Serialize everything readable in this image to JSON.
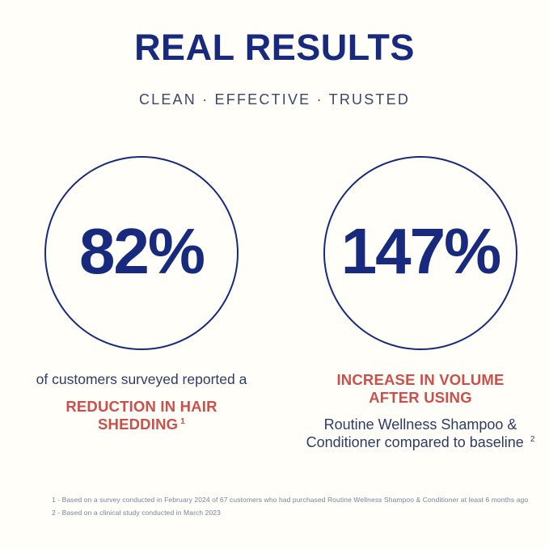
{
  "header": {
    "title": "REAL RESULTS",
    "subtitle": "CLEAN · EFFECTIVE · TRUSTED"
  },
  "stats": [
    {
      "id": "hair-shedding-reduction",
      "value": "82%",
      "lead": "of customers surveyed reported a",
      "highlight_lines": [
        "REDUCTION IN HAIR",
        "SHEDDING"
      ],
      "footnote_ref": "1"
    },
    {
      "id": "volume-increase",
      "value": "147%",
      "highlight_lines": [
        "INCREASE IN VOLUME",
        "AFTER USING"
      ],
      "detail_lines": [
        "Routine Wellness Shampoo &",
        "Conditioner compared to baseline"
      ],
      "footnote_ref": "2"
    }
  ],
  "footnotes": [
    "1 - Based on a survey conducted in February 2024 of 67 customers who had purchased Routine Wellness Shampoo & Conditioner at least 6 months ago",
    "2 - Based on a clinical study conducted in March 2023"
  ],
  "colors": {
    "background": "#FFFEF8",
    "navy_dark": "#172A7D",
    "navy_body": "#2E3C6A",
    "navy_subtitle": "#3B4769",
    "accent_red": "#CB4F4A",
    "footnote_blue_gray": "#76849F"
  }
}
